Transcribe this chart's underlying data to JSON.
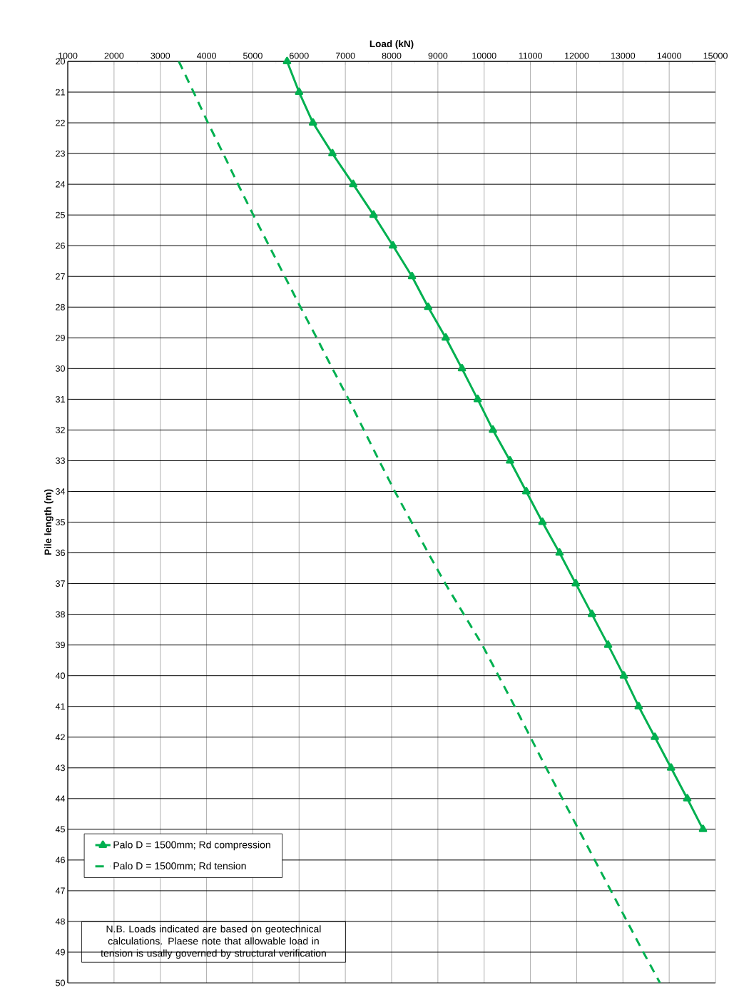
{
  "chart_data": {
    "type": "line",
    "xlabel": "Load (kN)",
    "ylabel": "Pile length (m)",
    "xlim": [
      1000,
      15000
    ],
    "xticks": [
      1000,
      2000,
      3000,
      4000,
      5000,
      6000,
      7000,
      8000,
      9000,
      10000,
      11000,
      12000,
      13000,
      14000,
      15000
    ],
    "ylim": [
      50,
      20
    ],
    "yticks": [
      20,
      21,
      22,
      23,
      24,
      25,
      26,
      27,
      28,
      29,
      30,
      31,
      32,
      33,
      34,
      35,
      36,
      37,
      38,
      39,
      40,
      41,
      42,
      43,
      44,
      45,
      46,
      47,
      48,
      49,
      50
    ],
    "grid": true,
    "legend": "bottom left",
    "series": [
      {
        "name": "Palo D = 1500mm;  Rd compression",
        "color": "#00b050",
        "marker": "triangle",
        "line_style": "solid",
        "x": [
          5740,
          6000,
          6300,
          6720,
          7170,
          7610,
          8030,
          8440,
          8790,
          9170,
          9520,
          9860,
          10190,
          10560,
          10910,
          11260,
          11630,
          11980,
          12330,
          12680,
          13020,
          13340,
          13690,
          14040,
          14390,
          14730
        ],
        "values": [
          20,
          21,
          22,
          23,
          24,
          25,
          26,
          27,
          28,
          29,
          30,
          31,
          32,
          33,
          34,
          35,
          36,
          37,
          38,
          39,
          40,
          41,
          42,
          43,
          44,
          45
        ]
      },
      {
        "name": "Palo D = 1500mm;  Rd tension",
        "color": "#00b050",
        "marker": "none",
        "line_style": "dashed",
        "x": [
          3400,
          3720,
          4030,
          4360,
          4680,
          5010,
          5350,
          5690,
          6030,
          6380,
          6720,
          7070,
          7400,
          7730,
          8070,
          8430,
          8790,
          9160,
          9560,
          9960,
          10310,
          10660,
          11000,
          11340,
          11690,
          12040,
          12390,
          12740,
          13090,
          13440,
          13800
        ],
        "values": [
          20,
          21,
          22,
          23,
          24,
          25,
          26,
          27,
          28,
          29,
          30,
          31,
          32,
          33,
          34,
          35,
          36,
          37,
          38,
          39,
          40,
          41,
          42,
          43,
          44,
          45,
          46,
          47,
          48,
          49,
          50
        ]
      }
    ],
    "annotations": [
      "N.B. Loads indicated are based on geotechnical calculations. Plaese note that allowable load in tension is usally governed by structural verification"
    ]
  }
}
